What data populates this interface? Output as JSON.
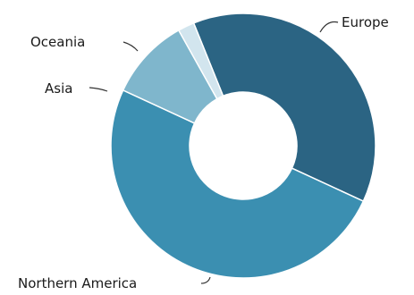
{
  "chart_data": {
    "type": "pie",
    "donut": true,
    "title": "",
    "legend": "none",
    "slices": [
      {
        "label": "Europe",
        "value": 38,
        "color": "#2b6483"
      },
      {
        "label": "Northern America",
        "value": 50,
        "color": "#3b8fb1"
      },
      {
        "label": "Asia",
        "value": 10,
        "color": "#7fb6cc"
      },
      {
        "label": "Oceania",
        "value": 2,
        "color": "#d2e5ee"
      }
    ]
  }
}
